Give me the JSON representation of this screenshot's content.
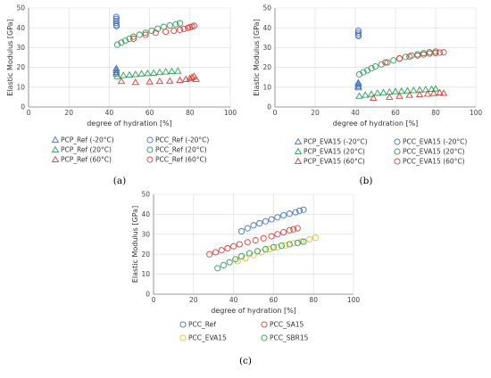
{
  "colors": {
    "blue": "#4472c4",
    "green": "#2e9e5b",
    "red": "#d9403a",
    "yellow": "#e3c22a",
    "grid": "#d9d9d9",
    "axis": "#808080"
  },
  "chart_data": [
    {
      "id": "a",
      "panel_label": "(a)",
      "type": "scatter",
      "xlabel": "degree of hydration [%]",
      "ylabel": "Elastic Modulus [GPa]",
      "xlim": [
        0,
        100
      ],
      "ylim": [
        0,
        50
      ],
      "xticks": [
        0,
        20,
        40,
        60,
        80,
        100
      ],
      "yticks": [
        0,
        10,
        20,
        30,
        40,
        50
      ],
      "grid": true,
      "legend_position": "bottom",
      "series": [
        {
          "name": "PCP_Ref (-20°C)",
          "marker": "triangle",
          "color": "blue",
          "points": [
            [
              43.5,
              17.5
            ],
            [
              43.5,
              18.5
            ],
            [
              43.5,
              19.5
            ],
            [
              43.6,
              16.8
            ]
          ]
        },
        {
          "name": "PCC_Ref (-20°C)",
          "marker": "circle",
          "color": "blue",
          "points": [
            [
              43.5,
              41.5
            ],
            [
              43.5,
              42.5
            ],
            [
              43.5,
              43.5
            ],
            [
              43.5,
              44.5
            ],
            [
              43.5,
              45.5
            ],
            [
              43.6,
              40.8
            ]
          ]
        },
        {
          "name": "PCP_Ref (20°C)",
          "marker": "triangle",
          "color": "green",
          "points": [
            [
              44,
              15.5
            ],
            [
              47,
              16
            ],
            [
              50,
              16.2
            ],
            [
              53,
              16.5
            ],
            [
              56,
              16.8
            ],
            [
              59,
              17
            ],
            [
              62,
              17.2
            ],
            [
              65,
              17.5
            ],
            [
              68,
              17.8
            ],
            [
              71,
              18
            ],
            [
              74,
              18.2
            ]
          ]
        },
        {
          "name": "PCC_Ref (20°C)",
          "marker": "circle",
          "color": "green",
          "points": [
            [
              44,
              31.5
            ],
            [
              46,
              32.5
            ],
            [
              48,
              33.5
            ],
            [
              50,
              34.5
            ],
            [
              52,
              35.5
            ],
            [
              55,
              36.5
            ],
            [
              58,
              37.5
            ],
            [
              61,
              38.5
            ],
            [
              64,
              39.5
            ],
            [
              67,
              40.5
            ],
            [
              70,
              41.2
            ],
            [
              73,
              41.8
            ],
            [
              75,
              42.3
            ]
          ]
        },
        {
          "name": "PCP_Ref (60°C)",
          "marker": "triangle",
          "color": "red",
          "points": [
            [
              46,
              13
            ],
            [
              53,
              12.5
            ],
            [
              60,
              12.8
            ],
            [
              65,
              13
            ],
            [
              70,
              13.2
            ],
            [
              75,
              13.5
            ],
            [
              78,
              14
            ],
            [
              80,
              14.5
            ],
            [
              81,
              15
            ],
            [
              82,
              15.5
            ],
            [
              83,
              14
            ]
          ]
        },
        {
          "name": "PCC_Ref (60°C)",
          "marker": "circle",
          "color": "red",
          "points": [
            [
              52,
              34.5
            ],
            [
              58,
              36.5
            ],
            [
              63,
              37.5
            ],
            [
              68,
              38
            ],
            [
              72,
              38.5
            ],
            [
              75,
              39
            ],
            [
              77,
              39.5
            ],
            [
              79,
              40
            ],
            [
              80,
              40.3
            ],
            [
              81,
              40.6
            ],
            [
              82,
              41
            ]
          ]
        }
      ]
    },
    {
      "id": "b",
      "panel_label": "(b)",
      "type": "scatter",
      "xlabel": "degree of hydration [%]",
      "ylabel": "Elastic Modulus [GPa]",
      "xlim": [
        0,
        100
      ],
      "ylim": [
        0,
        50
      ],
      "xticks": [
        0,
        20,
        40,
        60,
        80,
        100
      ],
      "yticks": [
        0,
        10,
        20,
        30,
        40,
        50
      ],
      "grid": true,
      "legend_position": "bottom",
      "series": [
        {
          "name": "PCP_EVA15 (-20°C)",
          "marker": "triangle",
          "color": "blue",
          "points": [
            [
              41.5,
              10.5
            ],
            [
              41.5,
              11.5
            ],
            [
              41.5,
              12.3
            ],
            [
              41.6,
              9.8
            ]
          ]
        },
        {
          "name": "PCC_EVA15 (-20°C)",
          "marker": "circle",
          "color": "blue",
          "points": [
            [
              41.5,
              36.5
            ],
            [
              41.5,
              37.5
            ],
            [
              41.5,
              38.5
            ],
            [
              41.6,
              35.8
            ]
          ]
        },
        {
          "name": "PCP_EVA15 (20°C)",
          "marker": "triangle",
          "color": "green",
          "points": [
            [
              42,
              5.5
            ],
            [
              45,
              6
            ],
            [
              48,
              6.5
            ],
            [
              51,
              7
            ],
            [
              54,
              7.3
            ],
            [
              57,
              7.6
            ],
            [
              60,
              7.8
            ],
            [
              63,
              8
            ],
            [
              66,
              8.2
            ],
            [
              69,
              8.4
            ],
            [
              72,
              8.6
            ],
            [
              75,
              8.8
            ],
            [
              78,
              9
            ],
            [
              80,
              9.2
            ]
          ]
        },
        {
          "name": "PCC_EVA15 (20°C)",
          "marker": "circle",
          "color": "green",
          "points": [
            [
              42,
              16.5
            ],
            [
              44,
              17.5
            ],
            [
              46,
              18.5
            ],
            [
              48,
              19.5
            ],
            [
              50,
              20.5
            ],
            [
              53,
              21.5
            ],
            [
              56,
              22.5
            ],
            [
              59,
              23.5
            ],
            [
              62,
              24.5
            ],
            [
              65,
              25.3
            ],
            [
              68,
              26
            ],
            [
              71,
              26.6
            ],
            [
              74,
              27.2
            ],
            [
              77,
              27.7
            ],
            [
              80,
              28
            ]
          ]
        },
        {
          "name": "PCP_EVA15 (60°C)",
          "marker": "triangle",
          "color": "red",
          "points": [
            [
              49,
              4.5
            ],
            [
              57,
              5
            ],
            [
              62,
              5.5
            ],
            [
              67,
              6
            ],
            [
              72,
              6.3
            ],
            [
              76,
              6.6
            ],
            [
              79,
              6.9
            ],
            [
              82,
              7.2
            ],
            [
              84,
              7
            ]
          ]
        },
        {
          "name": "PCC_EVA15 (60°C)",
          "marker": "circle",
          "color": "red",
          "points": [
            [
              55,
              22.5
            ],
            [
              62,
              24.5
            ],
            [
              67,
              25.5
            ],
            [
              71,
              26
            ],
            [
              74,
              26.5
            ],
            [
              77,
              27
            ],
            [
              80,
              27.3
            ],
            [
              82,
              27.5
            ],
            [
              84,
              27.6
            ]
          ]
        }
      ]
    },
    {
      "id": "c",
      "panel_label": "(c)",
      "type": "scatter",
      "xlabel": "degree of hydration [%]",
      "ylabel": "Elastic Modulus [GPa]",
      "xlim": [
        0,
        100
      ],
      "ylim": [
        0,
        50
      ],
      "xticks": [
        0,
        20,
        40,
        60,
        80,
        100
      ],
      "yticks": [
        0,
        10,
        20,
        30,
        40,
        50
      ],
      "grid": true,
      "legend_position": "bottom",
      "series": [
        {
          "name": "PCC_Ref",
          "marker": "circle",
          "color": "blue",
          "points": [
            [
              44,
              31.5
            ],
            [
              47,
              33
            ],
            [
              50,
              34.5
            ],
            [
              53,
              35.5
            ],
            [
              56,
              36.5
            ],
            [
              59,
              37.5
            ],
            [
              62,
              38.5
            ],
            [
              65,
              39.5
            ],
            [
              68,
              40.3
            ],
            [
              71,
              41
            ],
            [
              73,
              41.8
            ],
            [
              75,
              42.3
            ]
          ]
        },
        {
          "name": "PCC_SA15",
          "marker": "circle",
          "color": "red",
          "points": [
            [
              28,
              20
            ],
            [
              31,
              21
            ],
            [
              34,
              22
            ],
            [
              37,
              23
            ],
            [
              40,
              24
            ],
            [
              43,
              25
            ],
            [
              47,
              26
            ],
            [
              51,
              27
            ],
            [
              55,
              28
            ],
            [
              59,
              29
            ],
            [
              62,
              30
            ],
            [
              65,
              31
            ],
            [
              68,
              32
            ],
            [
              70,
              32.5
            ],
            [
              72,
              33
            ]
          ]
        },
        {
          "name": "PCC_EVA15",
          "marker": "circle",
          "color": "yellow",
          "points": [
            [
              42,
              16.5
            ],
            [
              46,
              18
            ],
            [
              50,
              19.5
            ],
            [
              54,
              21
            ],
            [
              58,
              22.5
            ],
            [
              62,
              23.5
            ],
            [
              66,
              24.5
            ],
            [
              70,
              25.5
            ],
            [
              74,
              26.5
            ],
            [
              78,
              27.5
            ],
            [
              81,
              28.3
            ]
          ]
        },
        {
          "name": "PCC_SBR15",
          "marker": "circle",
          "color": "green",
          "points": [
            [
              32,
              13
            ],
            [
              35,
              14.5
            ],
            [
              38,
              16
            ],
            [
              41,
              17.5
            ],
            [
              44,
              19
            ],
            [
              48,
              20.5
            ],
            [
              52,
              21.5
            ],
            [
              56,
              22.5
            ],
            [
              60,
              23.5
            ],
            [
              64,
              24.3
            ],
            [
              68,
              25
            ],
            [
              72,
              25.7
            ],
            [
              75,
              26.3
            ]
          ]
        }
      ]
    }
  ]
}
